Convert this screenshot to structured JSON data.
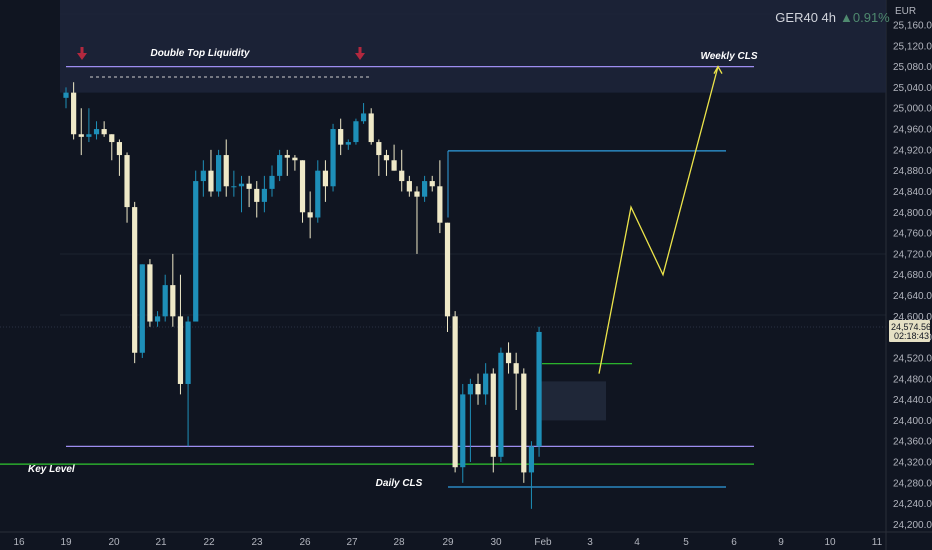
{
  "header": {
    "symbol": "GER40 4h",
    "change": "▲0.91%",
    "currency": "EUR"
  },
  "price_tag": {
    "price": "24,574.56",
    "countdown": "02:18:43"
  },
  "colors": {
    "background": "#101521",
    "up": "#1e8fb8",
    "down": "#efe9c8",
    "grid": "#1c2230",
    "purple": "#9d8df0",
    "green": "#2fc82f",
    "blue": "#2f9ee0",
    "yellow": "#ece44a",
    "arrow_red": "#b3283e",
    "price_tag": "#e5e0c4"
  },
  "annotations": {
    "double_top": "Double Top Liquidity",
    "weekly_cls": "Weekly CLS",
    "key_level": "Key Level",
    "daily_cls": "Daily CLS"
  },
  "chart_data": {
    "type": "candlestick",
    "title": "GER40 4h",
    "price_range": [
      24175,
      25220
    ],
    "y_ticks": [
      "25,160.00",
      "25,120.00",
      "25,080.00",
      "25,040.00",
      "25,000.00",
      "24,960.00",
      "24,920.00",
      "24,880.00",
      "24,840.00",
      "24,800.00",
      "24,760.00",
      "24,720.00",
      "24,680.00",
      "24,640.00",
      "24,600.00",
      "24,560.00",
      "24,520.00",
      "24,480.00",
      "24,440.00",
      "24,400.00",
      "24,360.00",
      "24,320.00",
      "24,280.00",
      "24,240.00",
      "24,200.00"
    ],
    "x_ticks": [
      "16",
      "19",
      "20",
      "21",
      "22",
      "23",
      "26",
      "27",
      "28",
      "29",
      "30",
      "Feb",
      "3",
      "4",
      "5",
      "6",
      "9",
      "10",
      "11"
    ],
    "candles": [
      {
        "o": 25020,
        "h": 25040,
        "l": 25000,
        "c": 25030
      },
      {
        "o": 25030,
        "h": 25050,
        "l": 24940,
        "c": 24950
      },
      {
        "o": 24950,
        "h": 25000,
        "l": 24910,
        "c": 24945
      },
      {
        "o": 24945,
        "h": 25000,
        "l": 24935,
        "c": 24950
      },
      {
        "o": 24950,
        "h": 24975,
        "l": 24940,
        "c": 24960
      },
      {
        "o": 24960,
        "h": 24975,
        "l": 24945,
        "c": 24950
      },
      {
        "o": 24950,
        "h": 24950,
        "l": 24900,
        "c": 24935
      },
      {
        "o": 24935,
        "h": 24940,
        "l": 24870,
        "c": 24910
      },
      {
        "o": 24910,
        "h": 24915,
        "l": 24780,
        "c": 24810
      },
      {
        "o": 24810,
        "h": 24820,
        "l": 24510,
        "c": 24530
      },
      {
        "o": 24530,
        "h": 24700,
        "l": 24520,
        "c": 24700
      },
      {
        "o": 24700,
        "h": 24710,
        "l": 24580,
        "c": 24590
      },
      {
        "o": 24590,
        "h": 24610,
        "l": 24580,
        "c": 24600
      },
      {
        "o": 24600,
        "h": 24680,
        "l": 24590,
        "c": 24660
      },
      {
        "o": 24660,
        "h": 24720,
        "l": 24580,
        "c": 24600
      },
      {
        "o": 24600,
        "h": 24680,
        "l": 24450,
        "c": 24470
      },
      {
        "o": 24470,
        "h": 24600,
        "l": 24350,
        "c": 24590
      },
      {
        "o": 24590,
        "h": 24880,
        "l": 24590,
        "c": 24860
      },
      {
        "o": 24860,
        "h": 24900,
        "l": 24830,
        "c": 24880
      },
      {
        "o": 24880,
        "h": 24920,
        "l": 24830,
        "c": 24840
      },
      {
        "o": 24840,
        "h": 24920,
        "l": 24830,
        "c": 24910
      },
      {
        "o": 24910,
        "h": 24940,
        "l": 24830,
        "c": 24850
      },
      {
        "o": 24850,
        "h": 24880,
        "l": 24830,
        "c": 24850
      },
      {
        "o": 24850,
        "h": 24870,
        "l": 24800,
        "c": 24855
      },
      {
        "o": 24855,
        "h": 24870,
        "l": 24810,
        "c": 24845
      },
      {
        "o": 24845,
        "h": 24860,
        "l": 24790,
        "c": 24820
      },
      {
        "o": 24820,
        "h": 24870,
        "l": 24800,
        "c": 24845
      },
      {
        "o": 24845,
        "h": 24890,
        "l": 24830,
        "c": 24870
      },
      {
        "o": 24870,
        "h": 24920,
        "l": 24860,
        "c": 24910
      },
      {
        "o": 24910,
        "h": 24920,
        "l": 24870,
        "c": 24905
      },
      {
        "o": 24905,
        "h": 24910,
        "l": 24880,
        "c": 24900
      },
      {
        "o": 24900,
        "h": 24900,
        "l": 24780,
        "c": 24800
      },
      {
        "o": 24800,
        "h": 24840,
        "l": 24750,
        "c": 24790
      },
      {
        "o": 24790,
        "h": 24900,
        "l": 24780,
        "c": 24880
      },
      {
        "o": 24880,
        "h": 24900,
        "l": 24820,
        "c": 24850
      },
      {
        "o": 24850,
        "h": 24970,
        "l": 24840,
        "c": 24960
      },
      {
        "o": 24960,
        "h": 24980,
        "l": 24910,
        "c": 24930
      },
      {
        "o": 24930,
        "h": 24940,
        "l": 24920,
        "c": 24935
      },
      {
        "o": 24935,
        "h": 24980,
        "l": 24930,
        "c": 24975
      },
      {
        "o": 24975,
        "h": 25010,
        "l": 24970,
        "c": 24990
      },
      {
        "o": 24990,
        "h": 25000,
        "l": 24930,
        "c": 24935
      },
      {
        "o": 24935,
        "h": 24940,
        "l": 24870,
        "c": 24910
      },
      {
        "o": 24910,
        "h": 24920,
        "l": 24870,
        "c": 24900
      },
      {
        "o": 24900,
        "h": 24930,
        "l": 24880,
        "c": 24880
      },
      {
        "o": 24880,
        "h": 24920,
        "l": 24840,
        "c": 24860
      },
      {
        "o": 24860,
        "h": 24870,
        "l": 24830,
        "c": 24840
      },
      {
        "o": 24840,
        "h": 24850,
        "l": 24720,
        "c": 24830
      },
      {
        "o": 24830,
        "h": 24870,
        "l": 24820,
        "c": 24860
      },
      {
        "o": 24860,
        "h": 24870,
        "l": 24840,
        "c": 24850
      },
      {
        "o": 24850,
        "h": 24900,
        "l": 24760,
        "c": 24780
      },
      {
        "o": 24780,
        "h": 24780,
        "l": 24570,
        "c": 24600
      },
      {
        "o": 24600,
        "h": 24610,
        "l": 24300,
        "c": 24310
      },
      {
        "o": 24310,
        "h": 24470,
        "l": 24280,
        "c": 24450
      },
      {
        "o": 24450,
        "h": 24480,
        "l": 24320,
        "c": 24470
      },
      {
        "o": 24470,
        "h": 24490,
        "l": 24430,
        "c": 24450
      },
      {
        "o": 24450,
        "h": 24510,
        "l": 24430,
        "c": 24490
      },
      {
        "o": 24490,
        "h": 24500,
        "l": 24300,
        "c": 24330
      },
      {
        "o": 24330,
        "h": 24540,
        "l": 24320,
        "c": 24530
      },
      {
        "o": 24530,
        "h": 24550,
        "l": 24490,
        "c": 24510
      },
      {
        "o": 24510,
        "h": 24530,
        "l": 24420,
        "c": 24490
      },
      {
        "o": 24490,
        "h": 24500,
        "l": 24280,
        "c": 24300
      },
      {
        "o": 24300,
        "h": 24360,
        "l": 24230,
        "c": 24350
      },
      {
        "o": 24350,
        "h": 24580,
        "l": 24330,
        "c": 24570
      }
    ],
    "levels": [
      {
        "label": "Double Top Liquidity",
        "price": 25080,
        "color": "purple"
      },
      {
        "price": 24350,
        "color": "purple"
      },
      {
        "label": "Key Level",
        "price": 24316,
        "color": "green"
      },
      {
        "price": 24918,
        "color": "blue"
      },
      {
        "label": "Daily CLS",
        "price": 24272,
        "color": "blue"
      },
      {
        "price": 24509,
        "color": "green"
      }
    ],
    "projection": [
      {
        "x": "Feb",
        "y": 24490
      },
      {
        "x": "4",
        "y": 24810
      },
      {
        "x": "4",
        "y": 24680
      },
      {
        "x": "6",
        "y": 25080
      }
    ]
  }
}
